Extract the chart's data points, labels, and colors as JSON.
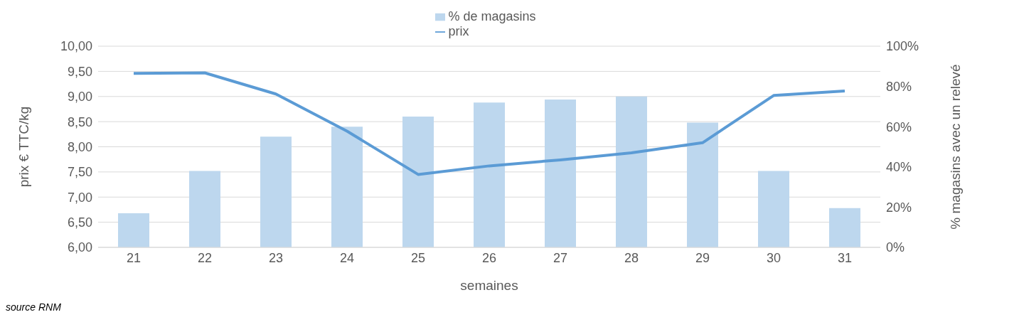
{
  "chart_data": {
    "type": "bar",
    "categories": [
      "21",
      "22",
      "23",
      "24",
      "25",
      "26",
      "27",
      "28",
      "29",
      "30",
      "31"
    ],
    "series": [
      {
        "name": "% de magasins",
        "axis": "y2",
        "color": "#bdd7ee",
        "values": [
          17,
          38,
          55,
          60,
          65,
          72,
          73.5,
          75,
          62,
          38,
          19.5
        ]
      },
      {
        "name": "prix",
        "type": "line",
        "color": "#5b9bd5",
        "values": [
          9.46,
          9.47,
          9.05,
          8.31,
          7.45,
          7.62,
          7.74,
          7.88,
          8.08,
          9.02,
          9.11
        ]
      }
    ],
    "xlabel": "semaines",
    "ylabel": "prix € TTC/kg",
    "y2label": "% magasins avec un relevé",
    "ylim": [
      6,
      10
    ],
    "yticks": [
      {
        "value": 6,
        "label": "6,00"
      },
      {
        "value": 6.5,
        "label": "6,50"
      },
      {
        "value": 7,
        "label": "7,00"
      },
      {
        "value": 7.5,
        "label": "7,50"
      },
      {
        "value": 8,
        "label": "8,00"
      },
      {
        "value": 8.5,
        "label": "8,50"
      },
      {
        "value": 9,
        "label": "9,00"
      },
      {
        "value": 9.5,
        "label": "9,50"
      },
      {
        "value": 10,
        "label": "10,00"
      }
    ],
    "y2lim": [
      0,
      100
    ],
    "y2ticks": [
      {
        "value": 0,
        "label": "0%"
      },
      {
        "value": 20,
        "label": "20%"
      },
      {
        "value": 40,
        "label": "40%"
      },
      {
        "value": 60,
        "label": "60%"
      },
      {
        "value": 80,
        "label": "80%"
      },
      {
        "value": 100,
        "label": "100%"
      }
    ],
    "grid": "y",
    "legend": "top",
    "marker": "none",
    "line_style": "solid",
    "annotations": [
      "source RNM"
    ]
  }
}
